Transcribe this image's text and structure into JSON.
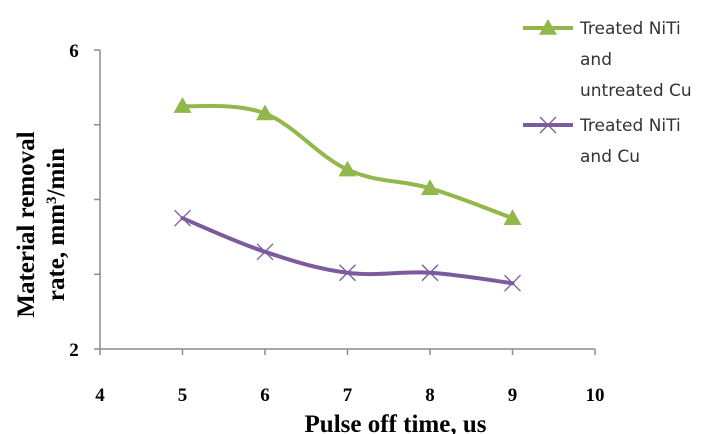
{
  "chart_data": {
    "type": "line",
    "title": "",
    "xlabel": "Pulse off time, us",
    "ylabel": "Material removal rate, mm³/min",
    "ylabel_line1": "Material removal",
    "ylabel_line2_prefix": "rate, mm",
    "ylabel_line2_sup": "3",
    "ylabel_line2_suffix": "/min",
    "xlim": [
      4,
      10
    ],
    "ylim": [
      2,
      6
    ],
    "xticks": [
      "4",
      "5",
      "6",
      "7",
      "8",
      "9",
      "10"
    ],
    "yticks": [
      "2",
      "",
      "",
      "",
      "6"
    ],
    "grid": false,
    "legend_position": "top-right",
    "series": [
      {
        "name": "Treated NiTi and untreated Cu",
        "name_lines": [
          "Treated NiTi",
          "and",
          "untreated Cu"
        ],
        "marker": "triangle",
        "color": "#92b74a",
        "x": [
          5,
          6,
          7,
          8,
          9
        ],
        "y": [
          5.25,
          5.15,
          4.4,
          4.15,
          3.75
        ]
      },
      {
        "name": "Treated NiTi and Cu",
        "name_lines": [
          "Treated NiTi",
          "and Cu"
        ],
        "marker": "x",
        "color": "#7b5b9d",
        "x": [
          5,
          6,
          7,
          8,
          9
        ],
        "y": [
          3.75,
          3.3,
          3.02,
          3.02,
          2.88
        ]
      }
    ]
  }
}
